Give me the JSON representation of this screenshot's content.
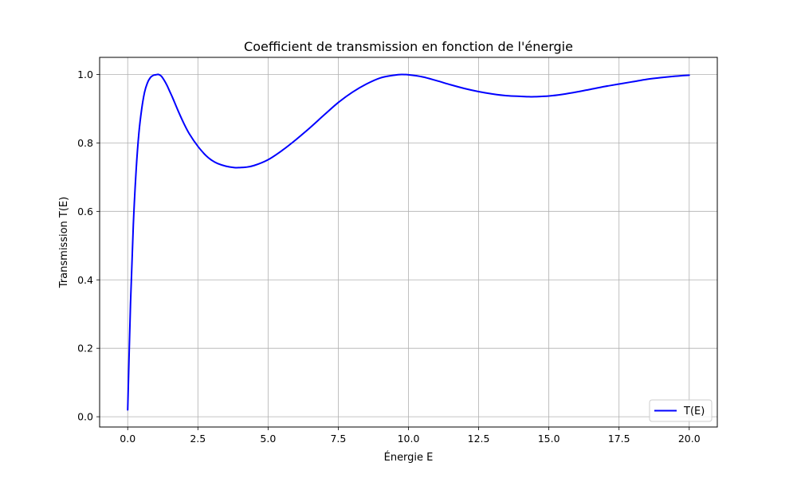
{
  "chart_data": {
    "type": "line",
    "title": "Coefficient de transmission en fonction de l'énergie",
    "xlabel": "Énergie E",
    "ylabel": "Transmission T(E)",
    "xlim": [
      -1.0,
      21.0
    ],
    "ylim": [
      -0.03,
      1.05
    ],
    "x_ticks": [
      0.0,
      2.5,
      5.0,
      7.5,
      10.0,
      12.5,
      15.0,
      17.5,
      20.0
    ],
    "x_tick_labels": [
      "0.0",
      "2.5",
      "5.0",
      "7.5",
      "10.0",
      "12.5",
      "15.0",
      "17.5",
      "20.0"
    ],
    "y_ticks": [
      0.0,
      0.2,
      0.4,
      0.6,
      0.8,
      1.0
    ],
    "y_tick_labels": [
      "0.0",
      "0.2",
      "0.4",
      "0.6",
      "0.8",
      "1.0"
    ],
    "grid": true,
    "legend": {
      "position": "lower-right"
    },
    "series": [
      {
        "name": "T(E)",
        "color": "#0000ff",
        "x": [
          0.0,
          0.1,
          0.2,
          0.3,
          0.4,
          0.5,
          0.6,
          0.7,
          0.8,
          0.9,
          1.0,
          1.1,
          1.2,
          1.3,
          1.4,
          1.5,
          1.6,
          1.8,
          2.0,
          2.2,
          2.5,
          2.8,
          3.0,
          3.2,
          3.5,
          3.8,
          4.0,
          4.2,
          4.5,
          5.0,
          5.5,
          6.0,
          6.5,
          7.0,
          7.5,
          8.0,
          8.5,
          9.0,
          9.5,
          9.75,
          10.0,
          10.5,
          11.0,
          11.5,
          12.0,
          12.5,
          13.0,
          13.5,
          14.0,
          14.3,
          14.5,
          15.0,
          15.5,
          16.0,
          16.5,
          17.0,
          17.5,
          18.0,
          18.5,
          19.0,
          19.5,
          20.0
        ],
        "y": [
          0.02,
          0.33,
          0.56,
          0.72,
          0.83,
          0.9,
          0.948,
          0.975,
          0.99,
          0.997,
          0.999,
          1.0,
          0.995,
          0.983,
          0.968,
          0.95,
          0.932,
          0.893,
          0.857,
          0.826,
          0.79,
          0.762,
          0.749,
          0.74,
          0.732,
          0.728,
          0.728,
          0.729,
          0.734,
          0.751,
          0.778,
          0.81,
          0.845,
          0.882,
          0.918,
          0.948,
          0.972,
          0.99,
          0.998,
          1.0,
          0.999,
          0.993,
          0.982,
          0.97,
          0.959,
          0.95,
          0.943,
          0.938,
          0.936,
          0.935,
          0.935,
          0.937,
          0.942,
          0.949,
          0.957,
          0.965,
          0.972,
          0.979,
          0.986,
          0.991,
          0.995,
          0.998
        ]
      }
    ]
  }
}
